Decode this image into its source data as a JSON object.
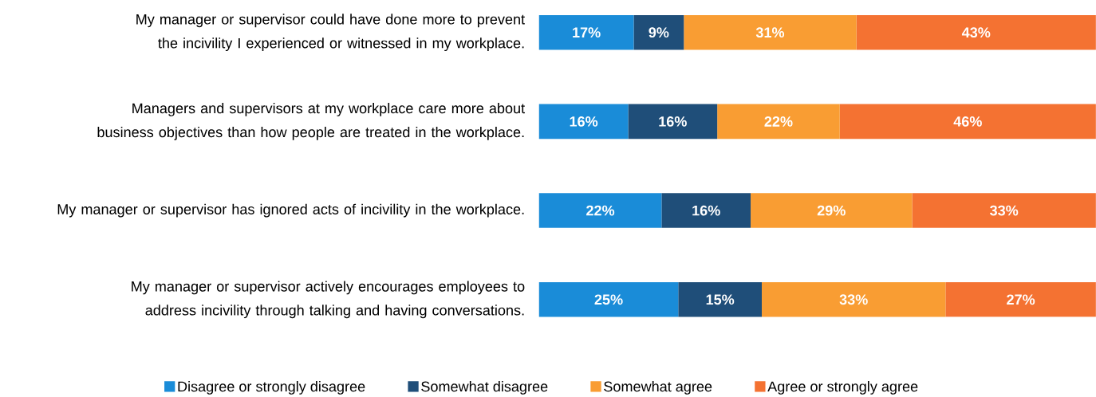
{
  "chart_data": {
    "type": "bar",
    "orientation": "horizontal",
    "stacked": true,
    "categories": [
      "My manager or supervisor could have done more to prevent the incivility I experienced or witnessed in my workplace.",
      "Managers and supervisors at my workplace care more about business objectives than how people are treated in the workplace.",
      "My manager or supervisor has ignored acts of incivility in the workplace.",
      "My manager or supervisor actively encourages employees to address incivility through talking and having conversations."
    ],
    "series": [
      {
        "name": "Disagree or strongly disagree",
        "color": "#1a8cd8",
        "values": [
          17,
          16,
          22,
          25
        ],
        "value_labels": [
          "17%",
          "16%",
          "22%",
          "25%"
        ]
      },
      {
        "name": "Somewhat disagree",
        "color": "#1f4e79",
        "values": [
          9,
          16,
          16,
          15
        ],
        "value_labels": [
          "9%",
          "16%",
          "16%",
          "15%"
        ]
      },
      {
        "name": "Somewhat agree",
        "color": "#f99d33",
        "values": [
          31,
          22,
          29,
          33
        ],
        "value_labels": [
          "31%",
          "22%",
          "29%",
          "33%"
        ]
      },
      {
        "name": "Agree or strongly agree",
        "color": "#f47232",
        "values": [
          43,
          46,
          33,
          27
        ],
        "value_labels": [
          "43%",
          "46%",
          "33%",
          "27%"
        ]
      }
    ],
    "xlim": [
      0,
      100
    ],
    "legend": "bottom",
    "tick_labels": "y"
  }
}
